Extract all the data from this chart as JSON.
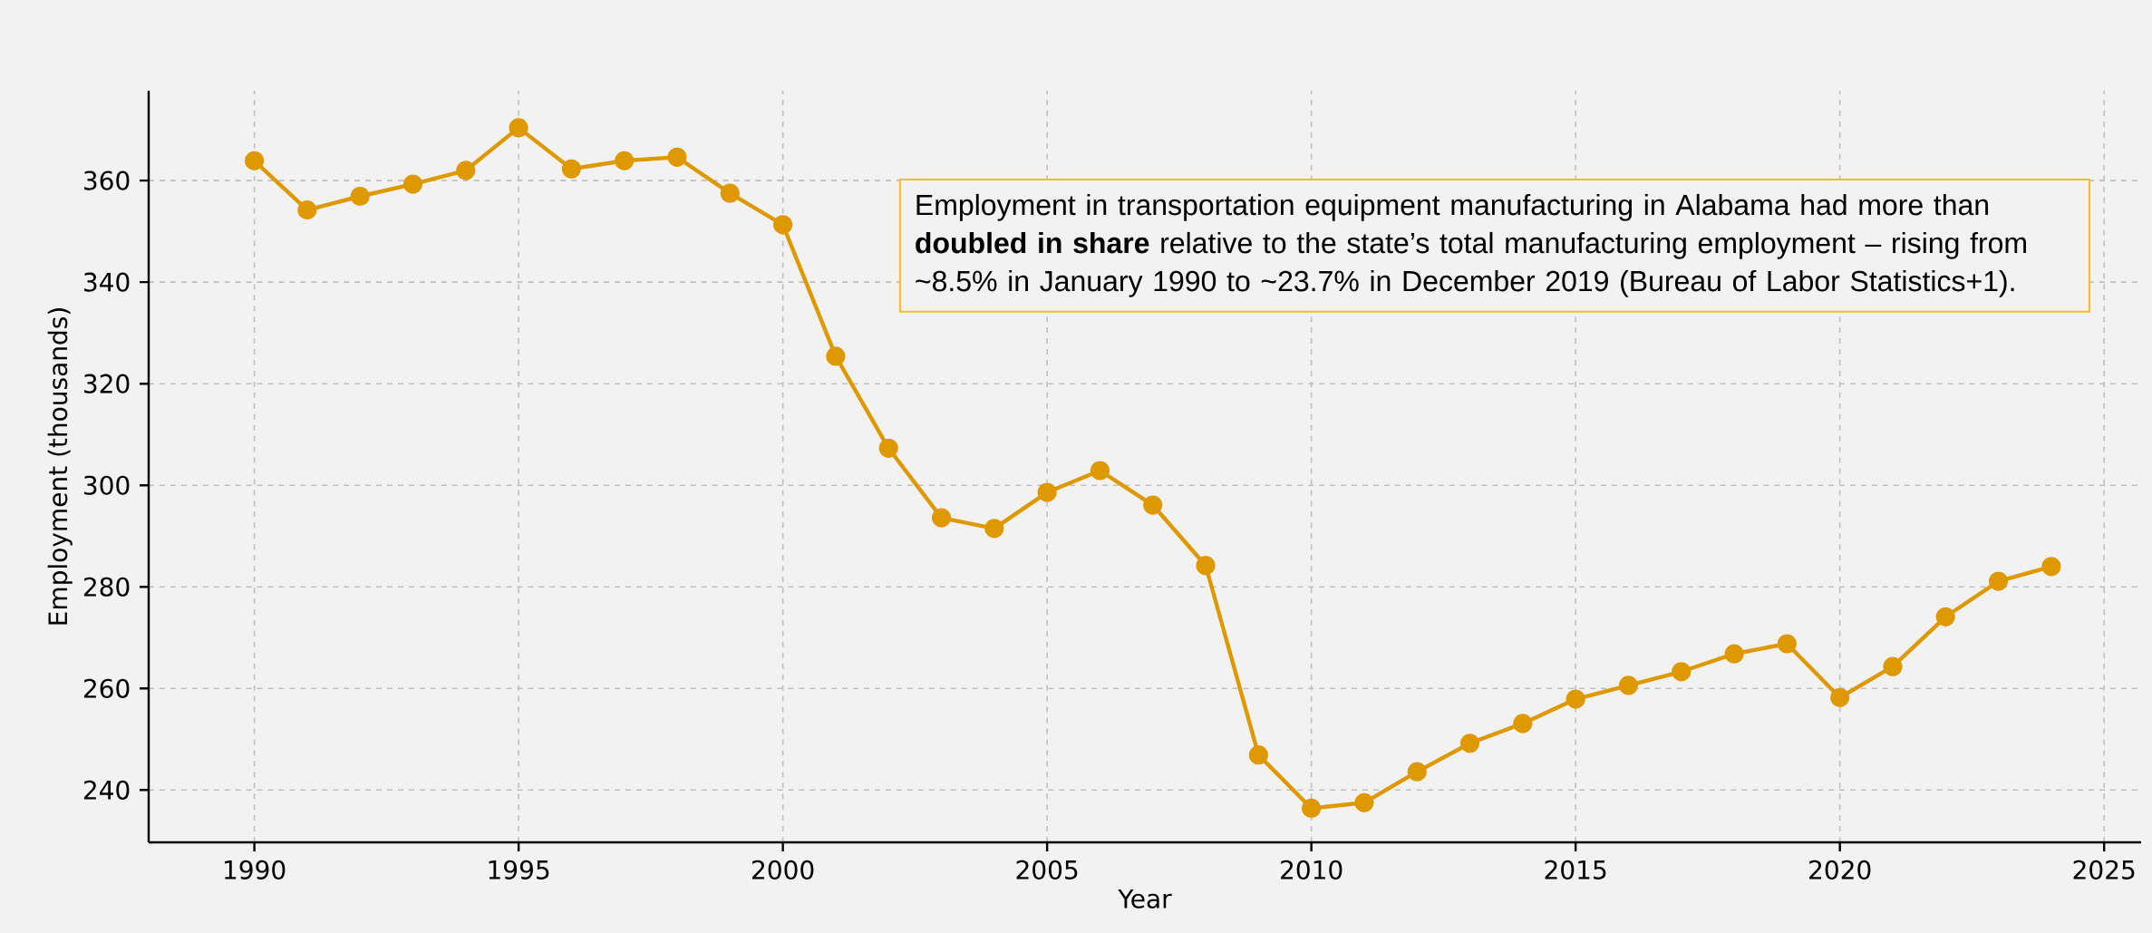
{
  "chart_data": {
    "type": "line",
    "xlabel": "Year",
    "ylabel": "Employment (thousands)",
    "x": [
      1990,
      1991,
      1992,
      1993,
      1994,
      1995,
      1996,
      1997,
      1998,
      1999,
      2000,
      2001,
      2002,
      2003,
      2004,
      2005,
      2006,
      2007,
      2008,
      2009,
      2010,
      2011,
      2012,
      2013,
      2014,
      2015,
      2016,
      2017,
      2018,
      2019,
      2020,
      2021,
      2022,
      2023,
      2024
    ],
    "series": [
      {
        "color": "#de9800",
        "values": [
          363.9,
          354.2,
          356.9,
          359.3,
          362.0,
          370.4,
          362.3,
          363.9,
          364.6,
          357.5,
          351.3,
          325.4,
          307.3,
          293.6,
          291.5,
          298.6,
          302.9,
          296.1,
          284.2,
          246.9,
          236.4,
          237.5,
          243.6,
          249.2,
          253.1,
          257.9,
          260.6,
          263.3,
          266.8,
          268.8,
          258.2,
          264.3,
          274.1,
          281.1,
          284.0
        ]
      }
    ],
    "xlim": [
      1988,
      2025.7
    ],
    "ylim": [
      229.7,
      377.7
    ],
    "xticks": [
      1990,
      1995,
      2000,
      2005,
      2010,
      2015,
      2020,
      2025
    ],
    "yticks": [
      240,
      260,
      280,
      300,
      320,
      340,
      360
    ],
    "grid": true,
    "marker": "circle",
    "line_style": "solid",
    "annotations": [
      "Employment in transportation equipment manufacturing in Alabama had more than **doubled in share** relative to the state’s total manufacturing employment – rising from ~8.5% in January 1990 to ~23.7% in December 2019 (Bureau of Labor Statistics+1)."
    ]
  }
}
